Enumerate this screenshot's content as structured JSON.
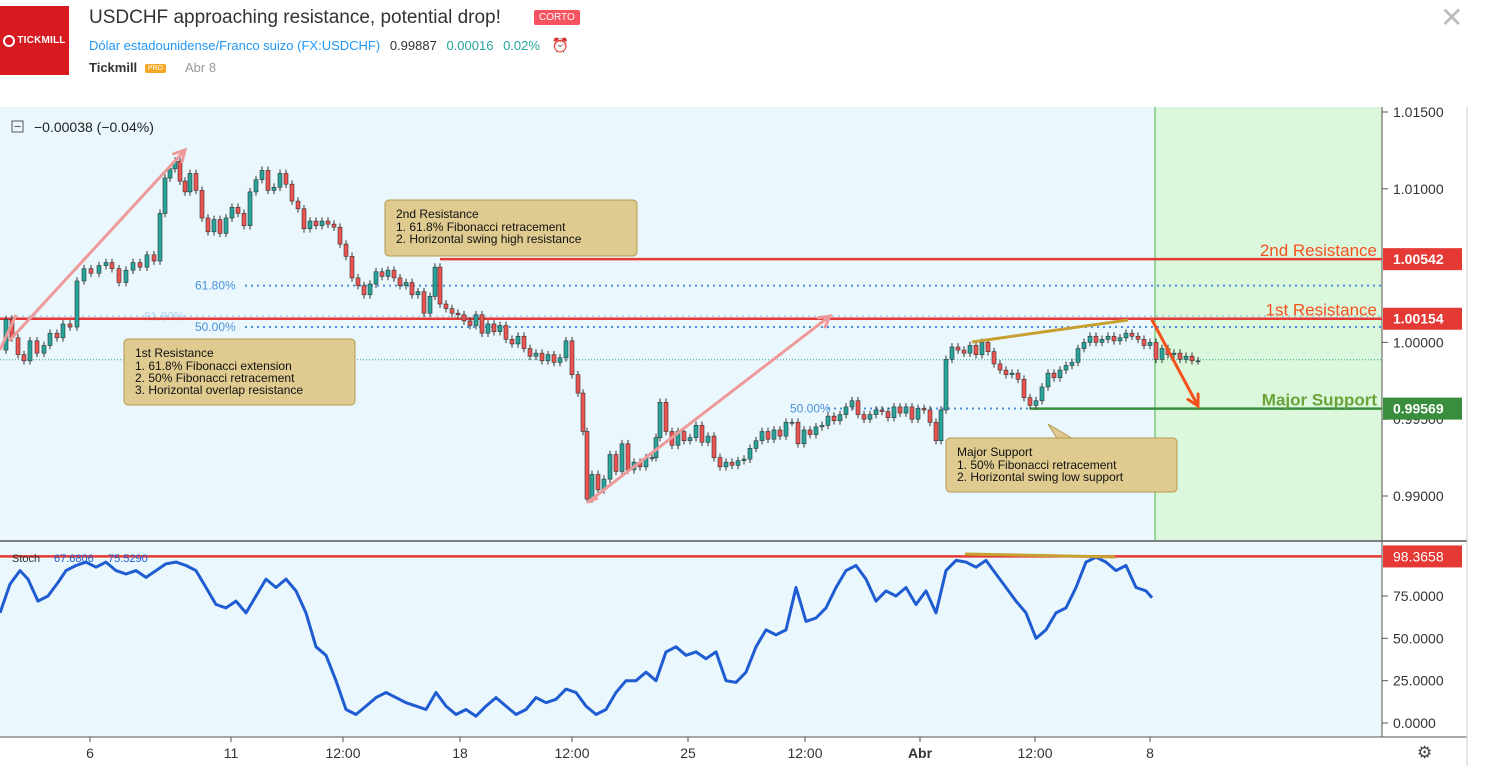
{
  "header": {
    "logo_text": "TICKMILL",
    "title": "USDCHF approaching resistance, potential drop!",
    "badge": "CORTO",
    "symbol_name": "Dólar estadounidense/Franco suizo",
    "symbol_code": "(FX:USDCHF)",
    "price": "0.99887",
    "change": "0.00016",
    "change_pct": "0.02%",
    "author": "Tickmill",
    "author_badge": "PRO",
    "date": "Abr 8",
    "close_icon": "close-icon",
    "alert_icon": "alarm-clock-icon"
  },
  "chart_data": [
    {
      "type": "line",
      "subtype": "candlestick",
      "symbol": "FX:USDCHF",
      "change_readout": "−0.00038 (−0.04%)",
      "ylim": [
        0.987,
        1.015
      ],
      "y_ticks": [
        "1.01500",
        "1.01000",
        "1.00000",
        "0.99500",
        "0.99000"
      ],
      "x_ticks": [
        "6",
        "11",
        "12:00",
        "18",
        "12:00",
        "25",
        "12:00",
        "Abr",
        "12:00",
        "8"
      ],
      "price_series": [
        [
          0,
          0.9995
        ],
        [
          6,
          1.0015
        ],
        [
          12,
          1.0003
        ],
        [
          18,
          0.9992
        ],
        [
          24,
          0.9988
        ],
        [
          30,
          1.0001
        ],
        [
          37,
          0.9993
        ],
        [
          44,
          0.9998
        ],
        [
          50,
          1.0006
        ],
        [
          57,
          1.0003
        ],
        [
          63,
          1.0012
        ],
        [
          70,
          1.001
        ],
        [
          77,
          1.004
        ],
        [
          84,
          1.0048
        ],
        [
          91,
          1.0045
        ],
        [
          99,
          1.005
        ],
        [
          106,
          1.0052
        ],
        [
          112,
          1.0048
        ],
        [
          119,
          1.0039
        ],
        [
          126,
          1.0047
        ],
        [
          133,
          1.0052
        ],
        [
          140,
          1.0049
        ],
        [
          147,
          1.0057
        ],
        [
          154,
          1.0053
        ],
        [
          160,
          1.0084
        ],
        [
          165,
          1.0107
        ],
        [
          170,
          1.0113
        ],
        [
          175,
          1.0118
        ],
        [
          180,
          1.0105
        ],
        [
          185,
          1.0098
        ],
        [
          190,
          1.011
        ],
        [
          196,
          1.0099
        ],
        [
          202,
          1.0081
        ],
        [
          208,
          1.0072
        ],
        [
          214,
          1.008
        ],
        [
          220,
          1.0071
        ],
        [
          226,
          1.0081
        ],
        [
          232,
          1.0088
        ],
        [
          238,
          1.0084
        ],
        [
          244,
          1.0076
        ],
        [
          250,
          1.0098
        ],
        [
          256,
          1.0106
        ],
        [
          262,
          1.0112
        ],
        [
          268,
          1.0099
        ],
        [
          274,
          1.0101
        ],
        [
          280,
          1.011
        ],
        [
          286,
          1.0103
        ],
        [
          292,
          1.0092
        ],
        [
          298,
          1.0087
        ],
        [
          304,
          1.0074
        ],
        [
          310,
          1.0079
        ],
        [
          316,
          1.0076
        ],
        [
          322,
          1.0079
        ],
        [
          328,
          1.0077
        ],
        [
          334,
          1.0075
        ],
        [
          340,
          1.0064
        ],
        [
          346,
          1.0056
        ],
        [
          352,
          1.0042
        ],
        [
          358,
          1.0037
        ],
        [
          364,
          1.0031
        ],
        [
          370,
          1.0038
        ],
        [
          376,
          1.0046
        ],
        [
          382,
          1.0043
        ],
        [
          388,
          1.0047
        ],
        [
          394,
          1.0042
        ],
        [
          400,
          1.0037
        ],
        [
          406,
          1.0039
        ],
        [
          412,
          1.0031
        ],
        [
          418,
          1.0033
        ],
        [
          424,
          1.0019
        ],
        [
          430,
          1.003
        ],
        [
          435,
          1.0049
        ],
        [
          440,
          1.0025
        ],
        [
          446,
          1.0022
        ],
        [
          452,
          1.0019
        ],
        [
          458,
          1.0018
        ],
        [
          464,
          1.0014
        ],
        [
          470,
          1.0011
        ],
        [
          476,
          1.0018
        ],
        [
          482,
          1.0006
        ],
        [
          488,
          1.0012
        ],
        [
          494,
          1.0007
        ],
        [
          500,
          1.0011
        ],
        [
          506,
          1.0002
        ],
        [
          512,
          0.9999
        ],
        [
          518,
          1.0004
        ],
        [
          524,
          0.9996
        ],
        [
          530,
          0.9991
        ],
        [
          536,
          0.9993
        ],
        [
          542,
          0.9988
        ],
        [
          548,
          0.9992
        ],
        [
          554,
          0.9987
        ],
        [
          560,
          0.999
        ],
        [
          566,
          1.0001
        ],
        [
          572,
          0.9979
        ],
        [
          578,
          0.9967
        ],
        [
          583,
          0.9942
        ],
        [
          587,
          0.9898
        ],
        [
          592,
          0.9914
        ],
        [
          598,
          0.9904
        ],
        [
          604,
          0.9911
        ],
        [
          610,
          0.9927
        ],
        [
          616,
          0.9916
        ],
        [
          622,
          0.9934
        ],
        [
          628,
          0.9917
        ],
        [
          634,
          0.9922
        ],
        [
          640,
          0.9919
        ],
        [
          646,
          0.9925
        ],
        [
          652,
          0.9925
        ],
        [
          656,
          0.9938
        ],
        [
          660,
          0.9961
        ],
        [
          666,
          0.9942
        ],
        [
          672,
          0.9933
        ],
        [
          678,
          0.9942
        ],
        [
          684,
          0.9936
        ],
        [
          690,
          0.9938
        ],
        [
          696,
          0.9946
        ],
        [
          702,
          0.9935
        ],
        [
          708,
          0.9939
        ],
        [
          714,
          0.9925
        ],
        [
          720,
          0.9919
        ],
        [
          726,
          0.9922
        ],
        [
          732,
          0.992
        ],
        [
          738,
          0.9923
        ],
        [
          744,
          0.9924
        ],
        [
          750,
          0.9931
        ],
        [
          756,
          0.9936
        ],
        [
          762,
          0.9942
        ],
        [
          768,
          0.9937
        ],
        [
          774,
          0.9943
        ],
        [
          780,
          0.9939
        ],
        [
          786,
          0.9948
        ],
        [
          792,
          0.9948
        ],
        [
          798,
          0.9934
        ],
        [
          804,
          0.9943
        ],
        [
          810,
          0.994
        ],
        [
          816,
          0.9945
        ],
        [
          822,
          0.9946
        ],
        [
          828,
          0.9952
        ],
        [
          834,
          0.9949
        ],
        [
          840,
          0.9953
        ],
        [
          846,
          0.9958
        ],
        [
          852,
          0.9962
        ],
        [
          858,
          0.9953
        ],
        [
          864,
          0.995
        ],
        [
          870,
          0.9953
        ],
        [
          876,
          0.9956
        ],
        [
          882,
          0.9955
        ],
        [
          888,
          0.9951
        ],
        [
          894,
          0.9958
        ],
        [
          900,
          0.9954
        ],
        [
          906,
          0.9958
        ],
        [
          912,
          0.995
        ],
        [
          918,
          0.9957
        ],
        [
          924,
          0.9956
        ],
        [
          930,
          0.9948
        ],
        [
          936,
          0.9936
        ],
        [
          941,
          0.9956
        ],
        [
          946,
          0.9989
        ],
        [
          952,
          0.9997
        ],
        [
          958,
          0.9995
        ],
        [
          964,
          0.9993
        ],
        [
          970,
          0.9998
        ],
        [
          976,
          0.9992
        ],
        [
          982,
          1.0
        ],
        [
          988,
          0.9994
        ],
        [
          994,
          0.9986
        ],
        [
          1000,
          0.9982
        ],
        [
          1006,
          0.9979
        ],
        [
          1012,
          0.998
        ],
        [
          1018,
          0.9976
        ],
        [
          1024,
          0.9964
        ],
        [
          1030,
          0.9959
        ],
        [
          1036,
          0.9962
        ],
        [
          1042,
          0.9971
        ],
        [
          1048,
          0.998
        ],
        [
          1054,
          0.9977
        ],
        [
          1060,
          0.9982
        ],
        [
          1066,
          0.9985
        ],
        [
          1072,
          0.9987
        ],
        [
          1078,
          0.9996
        ],
        [
          1084,
          1.0
        ],
        [
          1090,
          1.0004
        ],
        [
          1096,
          1.0
        ],
        [
          1102,
          1.0002
        ],
        [
          1108,
          1.0004
        ],
        [
          1114,
          1.0001
        ],
        [
          1120,
          1.0003
        ],
        [
          1126,
          1.0006
        ],
        [
          1132,
          1.0004
        ],
        [
          1138,
          1.0002
        ],
        [
          1144,
          0.9998
        ],
        [
          1150,
          1.0
        ],
        [
          1156,
          0.9989
        ],
        [
          1162,
          0.9996
        ],
        [
          1168,
          0.9992
        ],
        [
          1174,
          0.9993
        ],
        [
          1180,
          0.9989
        ],
        [
          1186,
          0.9991
        ],
        [
          1192,
          0.9988
        ],
        [
          1198,
          0.9988
        ]
      ],
      "levels": [
        {
          "name": "2nd Resistance",
          "value": 1.00542,
          "label": "1.00542",
          "color": "#e53935"
        },
        {
          "name": "1st Resistance",
          "value": 1.00154,
          "label": "1.00154",
          "color": "#e53935"
        },
        {
          "name": "Major Support",
          "value": 0.99569,
          "label": "0.99569",
          "color": "#388e3c"
        }
      ],
      "level_titles": {
        "r2": "2nd Resistance",
        "r1": "1st Resistance",
        "sup": "Major Support"
      },
      "fib_levels": [
        {
          "label": "61.80%",
          "value": 1.0037
        },
        {
          "label": "61.80%",
          "value": 1.0017
        },
        {
          "label": "50.00%",
          "value": 1.001
        },
        {
          "label": "50.00%",
          "value": 0.9957
        }
      ],
      "callouts": {
        "r2": {
          "title": "2nd Resistance",
          "lines": [
            "1. 61.8% Fibonacci retracement",
            "2. Horizontal swing high resistance"
          ]
        },
        "r1": {
          "title": "1st Resistance",
          "lines": [
            "1. 61.8% Fibonacci extension",
            "2. 50% Fibonacci retracement",
            "3. Horizontal overlap resistance"
          ]
        },
        "sup": {
          "title": "Major Support",
          "lines": [
            "1. 50% Fibonacci retracement",
            "2. Horizontal swing low support"
          ]
        }
      },
      "colors": {
        "background": "#eaf8fd",
        "projection_zone": "#dcf8dc",
        "up": "#26a69a",
        "down": "#ef5350",
        "resistance": "#e53935",
        "support": "#388e3c"
      }
    },
    {
      "type": "line",
      "indicator": "Stoch",
      "readout_label": "Stoch",
      "readout_k": "67.6806",
      "readout_d": "75.5290",
      "ylim": [
        -5,
        105
      ],
      "y_ticks": [
        "75.0000",
        "50.0000",
        "25.0000",
        "0.0000"
      ],
      "marker": {
        "value": 98.3658,
        "label": "98.3658"
      },
      "values": [
        [
          0,
          65
        ],
        [
          10,
          82
        ],
        [
          20,
          90
        ],
        [
          28,
          85
        ],
        [
          38,
          72
        ],
        [
          48,
          75
        ],
        [
          58,
          83
        ],
        [
          66,
          90
        ],
        [
          76,
          93
        ],
        [
          86,
          95
        ],
        [
          96,
          92
        ],
        [
          106,
          95
        ],
        [
          116,
          90
        ],
        [
          126,
          88
        ],
        [
          136,
          90
        ],
        [
          146,
          86
        ],
        [
          156,
          90
        ],
        [
          166,
          94
        ],
        [
          176,
          95
        ],
        [
          186,
          93
        ],
        [
          196,
          90
        ],
        [
          206,
          80
        ],
        [
          216,
          70
        ],
        [
          226,
          68
        ],
        [
          236,
          72
        ],
        [
          246,
          65
        ],
        [
          256,
          75
        ],
        [
          266,
          85
        ],
        [
          276,
          80
        ],
        [
          286,
          85
        ],
        [
          296,
          78
        ],
        [
          306,
          65
        ],
        [
          316,
          45
        ],
        [
          326,
          40
        ],
        [
          336,
          25
        ],
        [
          346,
          8
        ],
        [
          356,
          5
        ],
        [
          366,
          10
        ],
        [
          376,
          15
        ],
        [
          386,
          18
        ],
        [
          396,
          15
        ],
        [
          406,
          12
        ],
        [
          416,
          10
        ],
        [
          426,
          8
        ],
        [
          436,
          18
        ],
        [
          446,
          10
        ],
        [
          456,
          5
        ],
        [
          466,
          8
        ],
        [
          476,
          4
        ],
        [
          486,
          10
        ],
        [
          496,
          15
        ],
        [
          506,
          10
        ],
        [
          516,
          5
        ],
        [
          526,
          8
        ],
        [
          536,
          15
        ],
        [
          546,
          12
        ],
        [
          556,
          14
        ],
        [
          566,
          20
        ],
        [
          576,
          18
        ],
        [
          586,
          10
        ],
        [
          596,
          5
        ],
        [
          606,
          8
        ],
        [
          616,
          18
        ],
        [
          626,
          25
        ],
        [
          636,
          25
        ],
        [
          646,
          30
        ],
        [
          656,
          25
        ],
        [
          666,
          42
        ],
        [
          676,
          45
        ],
        [
          686,
          40
        ],
        [
          696,
          42
        ],
        [
          706,
          38
        ],
        [
          716,
          42
        ],
        [
          726,
          25
        ],
        [
          736,
          24
        ],
        [
          746,
          30
        ],
        [
          756,
          45
        ],
        [
          766,
          55
        ],
        [
          776,
          52
        ],
        [
          786,
          55
        ],
        [
          796,
          80
        ],
        [
          806,
          60
        ],
        [
          816,
          62
        ],
        [
          826,
          68
        ],
        [
          836,
          80
        ],
        [
          846,
          90
        ],
        [
          856,
          93
        ],
        [
          866,
          85
        ],
        [
          876,
          72
        ],
        [
          886,
          78
        ],
        [
          896,
          75
        ],
        [
          906,
          80
        ],
        [
          916,
          70
        ],
        [
          926,
          78
        ],
        [
          936,
          65
        ],
        [
          946,
          90
        ],
        [
          956,
          96
        ],
        [
          966,
          95
        ],
        [
          976,
          92
        ],
        [
          986,
          96
        ],
        [
          996,
          88
        ],
        [
          1006,
          80
        ],
        [
          1016,
          72
        ],
        [
          1026,
          65
        ],
        [
          1036,
          50
        ],
        [
          1046,
          55
        ],
        [
          1056,
          65
        ],
        [
          1066,
          68
        ],
        [
          1076,
          80
        ],
        [
          1086,
          95
        ],
        [
          1096,
          98
        ],
        [
          1106,
          95
        ],
        [
          1116,
          90
        ],
        [
          1126,
          93
        ],
        [
          1136,
          80
        ],
        [
          1146,
          78
        ],
        [
          1152,
          74
        ]
      ],
      "colors": {
        "line": "#1f5bd1",
        "marker": "#e53935",
        "divergence": "#c8a032"
      }
    }
  ],
  "toolbar": {
    "collapse_icon": "minus-box-icon",
    "settings_icon": "gear-icon"
  }
}
